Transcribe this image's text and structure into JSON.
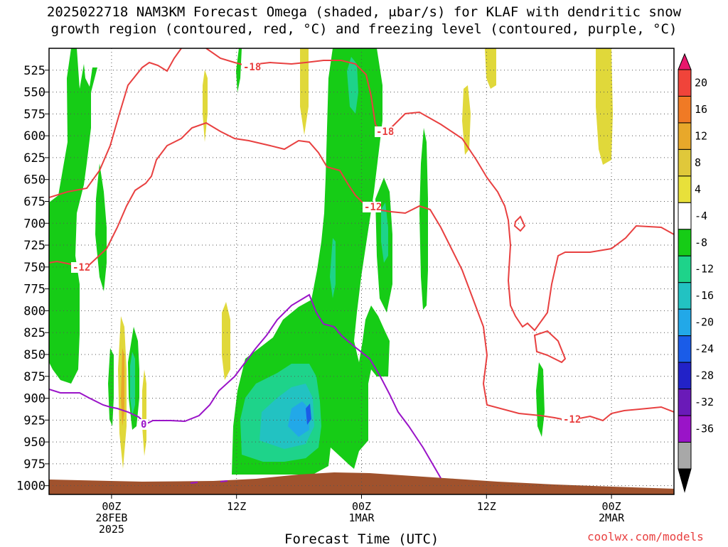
{
  "title_line1": "2025022718 NAM3KM Forecast Omega (shaded, μbar/s) for KLAF with dendritic snow",
  "title_line2": "growth region (contoured, red, °C) and freezing level (contoured, purple, °C)",
  "xlabel": "Forecast Time (UTC)",
  "credit": "coolwx.com/models",
  "chart_data": {
    "type": "heatmap",
    "title": "2025022718 NAM3KM Forecast Omega (shaded, μbar/s) for KLAF with dendritic snow growth region (contoured, red, °C) and freezing level (contoured, purple, °C)",
    "xlabel": "Forecast Time (UTC)",
    "ylabel": "",
    "x_range_hours_from_init": [
      0,
      60
    ],
    "ylim": [
      1010,
      500
    ],
    "y_ticks": [
      525,
      550,
      575,
      600,
      625,
      650,
      675,
      700,
      725,
      750,
      775,
      800,
      825,
      850,
      875,
      900,
      925,
      950,
      975,
      1000
    ],
    "x_ticks": [
      {
        "hour": 6,
        "labels": [
          "00Z",
          "28FEB",
          "2025"
        ]
      },
      {
        "hour": 18,
        "labels": [
          "12Z"
        ]
      },
      {
        "hour": 30,
        "labels": [
          "00Z",
          "1MAR"
        ]
      },
      {
        "hour": 42,
        "labels": [
          "12Z"
        ]
      },
      {
        "hour": 54,
        "labels": [
          "00Z",
          "2MAR"
        ]
      }
    ],
    "grid": true,
    "colorbar": {
      "labels": [
        "20",
        "16",
        "12",
        "8",
        "4",
        "-4",
        "-8",
        "-12",
        "-16",
        "-20",
        "-24",
        "-28",
        "-32",
        "-36"
      ],
      "colors": [
        "#e8176c",
        "#f0443a",
        "#f07a25",
        "#e8a82a",
        "#e0c83a",
        "#e8e03a",
        "#ffffff",
        "#16cc16",
        "#1ed38a",
        "#22c2c2",
        "#22a8e8",
        "#1a5ce8",
        "#2222c8",
        "#6a1ab8",
        "#9a14c8",
        "#a8a8a8",
        "#000000"
      ]
    },
    "contour_labels": [
      {
        "text": "-18",
        "color": "#e84040"
      },
      {
        "text": "-18",
        "color": "#e84040"
      },
      {
        "text": "-12",
        "color": "#e84040"
      },
      {
        "text": "-12",
        "color": "#e84040"
      },
      {
        "text": "-12",
        "color": "#e84040"
      },
      {
        "text": "0",
        "color": "#9a14c8"
      }
    ],
    "omega_regions": [
      {
        "level": "-4 to -8",
        "color": "#16cc16"
      },
      {
        "level": "-8 to -12",
        "color": "#1ed38a"
      },
      {
        "level": "-12 to -16",
        "color": "#22c2c2"
      },
      {
        "level": "-16 to -20",
        "color": "#22a8e8"
      },
      {
        "level": "-20 to -24",
        "color": "#1a5ce8"
      },
      {
        "level": "4 to 8",
        "color": "#e0d83a"
      },
      {
        "level": "8 to 12",
        "color": "#e8a82a"
      }
    ],
    "terrain_color": "#a0522d"
  }
}
